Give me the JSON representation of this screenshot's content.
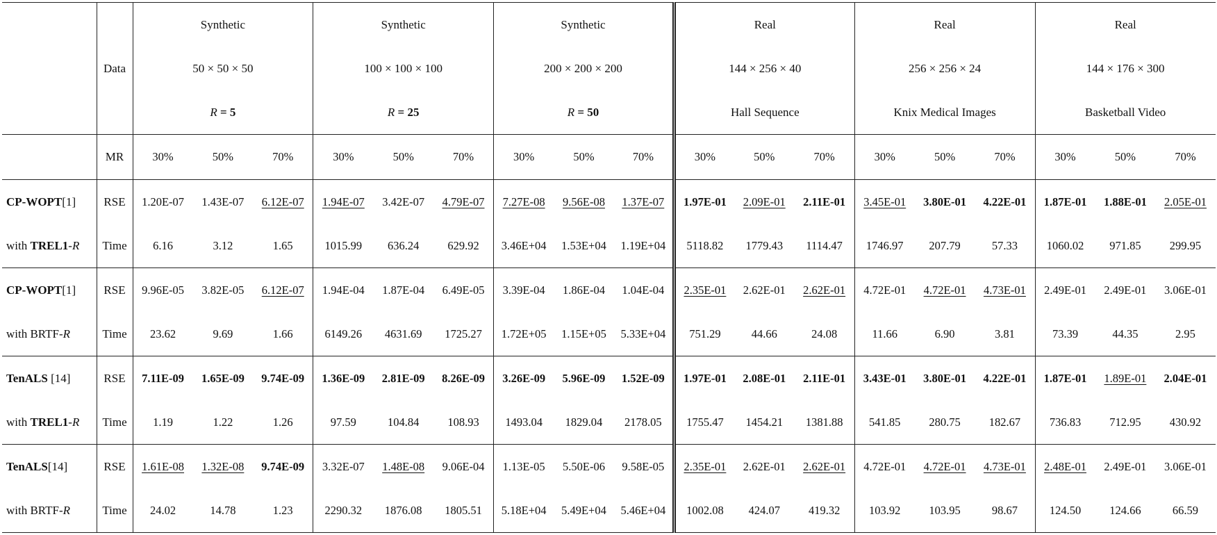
{
  "header": {
    "data_label": "Data",
    "mr_label": "MR",
    "groups": [
      {
        "type": "Synthetic",
        "dims": "50 × 50 × 50",
        "extra_prefix": "R",
        "extra_value": " = 5",
        "extra_bold": true
      },
      {
        "type": "Synthetic",
        "dims": "100 × 100 × 100",
        "extra_prefix": "R",
        "extra_value": " = 25",
        "extra_bold": true
      },
      {
        "type": "Synthetic",
        "dims": "200 × 200 × 200",
        "extra_prefix": "R",
        "extra_value": " = 50",
        "extra_bold": true
      },
      {
        "type": "Real",
        "dims": "144 × 256 × 40",
        "extra_prefix": "",
        "extra_value": "Hall Sequence",
        "extra_bold": false
      },
      {
        "type": "Real",
        "dims": "256 × 256 × 24",
        "extra_prefix": "",
        "extra_value": "Knix Medical Images",
        "extra_bold": false
      },
      {
        "type": "Real",
        "dims": "144 × 176 × 300",
        "extra_prefix": "",
        "extra_value": "Basketball Video",
        "extra_bold": false
      }
    ],
    "mr_values": [
      "30%",
      "50%",
      "70%"
    ]
  },
  "rows": [
    {
      "method_line1": {
        "bold": "CP-WOPT",
        "rest": "[1]"
      },
      "method_line2": {
        "pre": "with ",
        "bold": "TREL1",
        "mid": "-",
        "italic": "R"
      },
      "metric": "RSE",
      "cells": [
        {
          "v": "1.20E-07",
          "s": ""
        },
        {
          "v": "1.43E-07",
          "s": ""
        },
        {
          "v": "6.12E-07",
          "s": "u"
        },
        {
          "v": "1.94E-07",
          "s": "u"
        },
        {
          "v": "3.42E-07",
          "s": ""
        },
        {
          "v": "4.79E-07",
          "s": "u"
        },
        {
          "v": "7.27E-08",
          "s": "u"
        },
        {
          "v": "9.56E-08",
          "s": "u"
        },
        {
          "v": "1.37E-07",
          "s": "u"
        },
        {
          "v": "1.97E-01",
          "s": "b"
        },
        {
          "v": "2.09E-01",
          "s": "u"
        },
        {
          "v": "2.11E-01",
          "s": "b"
        },
        {
          "v": "3.45E-01",
          "s": "u"
        },
        {
          "v": "3.80E-01",
          "s": "b"
        },
        {
          "v": "4.22E-01",
          "s": "b"
        },
        {
          "v": "1.87E-01",
          "s": "b"
        },
        {
          "v": "1.88E-01",
          "s": "b"
        },
        {
          "v": "2.05E-01",
          "s": "u"
        }
      ]
    },
    {
      "metric": "Time",
      "cells": [
        {
          "v": "6.16",
          "s": ""
        },
        {
          "v": "3.12",
          "s": ""
        },
        {
          "v": "1.65",
          "s": ""
        },
        {
          "v": "1015.99",
          "s": ""
        },
        {
          "v": "636.24",
          "s": ""
        },
        {
          "v": "629.92",
          "s": ""
        },
        {
          "v": "3.46E+04",
          "s": ""
        },
        {
          "v": "1.53E+04",
          "s": ""
        },
        {
          "v": "1.19E+04",
          "s": ""
        },
        {
          "v": "5118.82",
          "s": ""
        },
        {
          "v": "1779.43",
          "s": ""
        },
        {
          "v": "1114.47",
          "s": ""
        },
        {
          "v": "1746.97",
          "s": ""
        },
        {
          "v": "207.79",
          "s": ""
        },
        {
          "v": "57.33",
          "s": ""
        },
        {
          "v": "1060.02",
          "s": ""
        },
        {
          "v": "971.85",
          "s": ""
        },
        {
          "v": "299.95",
          "s": ""
        }
      ]
    },
    {
      "method_line1": {
        "bold": "CP-WOPT",
        "rest": "[1]"
      },
      "method_line2": {
        "pre": "with BRTF-",
        "bold": "",
        "mid": "",
        "italic": "R"
      },
      "metric": "RSE",
      "cells": [
        {
          "v": "9.96E-05",
          "s": ""
        },
        {
          "v": "3.82E-05",
          "s": ""
        },
        {
          "v": "6.12E-07",
          "s": "u"
        },
        {
          "v": "1.94E-04",
          "s": ""
        },
        {
          "v": "1.87E-04",
          "s": ""
        },
        {
          "v": "6.49E-05",
          "s": ""
        },
        {
          "v": "3.39E-04",
          "s": ""
        },
        {
          "v": "1.86E-04",
          "s": ""
        },
        {
          "v": "1.04E-04",
          "s": ""
        },
        {
          "v": "2.35E-01",
          "s": "u"
        },
        {
          "v": "2.62E-01",
          "s": ""
        },
        {
          "v": "2.62E-01",
          "s": "u"
        },
        {
          "v": "4.72E-01",
          "s": ""
        },
        {
          "v": "4.72E-01",
          "s": "u"
        },
        {
          "v": "4.73E-01",
          "s": "u"
        },
        {
          "v": "2.49E-01",
          "s": ""
        },
        {
          "v": "2.49E-01",
          "s": ""
        },
        {
          "v": "3.06E-01",
          "s": ""
        }
      ]
    },
    {
      "metric": "Time",
      "cells": [
        {
          "v": "23.62",
          "s": ""
        },
        {
          "v": "9.69",
          "s": ""
        },
        {
          "v": "1.66",
          "s": ""
        },
        {
          "v": "6149.26",
          "s": ""
        },
        {
          "v": "4631.69",
          "s": ""
        },
        {
          "v": "1725.27",
          "s": ""
        },
        {
          "v": "1.72E+05",
          "s": ""
        },
        {
          "v": "1.15E+05",
          "s": ""
        },
        {
          "v": "5.33E+04",
          "s": ""
        },
        {
          "v": "751.29",
          "s": ""
        },
        {
          "v": "44.66",
          "s": ""
        },
        {
          "v": "24.08",
          "s": ""
        },
        {
          "v": "11.66",
          "s": ""
        },
        {
          "v": "6.90",
          "s": ""
        },
        {
          "v": "3.81",
          "s": ""
        },
        {
          "v": "73.39",
          "s": ""
        },
        {
          "v": "44.35",
          "s": ""
        },
        {
          "v": "2.95",
          "s": ""
        }
      ]
    },
    {
      "method_line1": {
        "bold": "TenALS",
        "rest": " [14]"
      },
      "method_line2": {
        "pre": "with ",
        "bold": "TREL1",
        "mid": "-",
        "italic": "R"
      },
      "metric": "RSE",
      "cells": [
        {
          "v": "7.11E-09",
          "s": "b"
        },
        {
          "v": "1.65E-09",
          "s": "b"
        },
        {
          "v": "9.74E-09",
          "s": "b"
        },
        {
          "v": "1.36E-09",
          "s": "b"
        },
        {
          "v": "2.81E-09",
          "s": "b"
        },
        {
          "v": "8.26E-09",
          "s": "b"
        },
        {
          "v": "3.26E-09",
          "s": "b"
        },
        {
          "v": "5.96E-09",
          "s": "b"
        },
        {
          "v": "1.52E-09",
          "s": "b"
        },
        {
          "v": "1.97E-01",
          "s": "b"
        },
        {
          "v": "2.08E-01",
          "s": "b"
        },
        {
          "v": "2.11E-01",
          "s": "b"
        },
        {
          "v": "3.43E-01",
          "s": "b"
        },
        {
          "v": "3.80E-01",
          "s": "b"
        },
        {
          "v": "4.22E-01",
          "s": "b"
        },
        {
          "v": "1.87E-01",
          "s": "b"
        },
        {
          "v": "1.89E-01",
          "s": "u"
        },
        {
          "v": "2.04E-01",
          "s": "b"
        }
      ]
    },
    {
      "metric": "Time",
      "cells": [
        {
          "v": "1.19",
          "s": ""
        },
        {
          "v": "1.22",
          "s": ""
        },
        {
          "v": "1.26",
          "s": ""
        },
        {
          "v": "97.59",
          "s": ""
        },
        {
          "v": "104.84",
          "s": ""
        },
        {
          "v": "108.93",
          "s": ""
        },
        {
          "v": "1493.04",
          "s": ""
        },
        {
          "v": "1829.04",
          "s": ""
        },
        {
          "v": "2178.05",
          "s": ""
        },
        {
          "v": "1755.47",
          "s": ""
        },
        {
          "v": "1454.21",
          "s": ""
        },
        {
          "v": "1381.88",
          "s": ""
        },
        {
          "v": "541.85",
          "s": ""
        },
        {
          "v": "280.75",
          "s": ""
        },
        {
          "v": "182.67",
          "s": ""
        },
        {
          "v": "736.83",
          "s": ""
        },
        {
          "v": "712.95",
          "s": ""
        },
        {
          "v": "430.92",
          "s": ""
        }
      ]
    },
    {
      "method_line1": {
        "bold": "TenALS",
        "rest": "[14]"
      },
      "method_line2": {
        "pre": "with BRTF-",
        "bold": "",
        "mid": "",
        "italic": "R"
      },
      "metric": "RSE",
      "cells": [
        {
          "v": "1.61E-08",
          "s": "u"
        },
        {
          "v": "1.32E-08",
          "s": "u"
        },
        {
          "v": "9.74E-09",
          "s": "b"
        },
        {
          "v": "3.32E-07",
          "s": ""
        },
        {
          "v": "1.48E-08",
          "s": "u"
        },
        {
          "v": "9.06E-04",
          "s": ""
        },
        {
          "v": "1.13E-05",
          "s": ""
        },
        {
          "v": "5.50E-06",
          "s": ""
        },
        {
          "v": "9.58E-05",
          "s": ""
        },
        {
          "v": "2.35E-01",
          "s": "u"
        },
        {
          "v": "2.62E-01",
          "s": ""
        },
        {
          "v": "2.62E-01",
          "s": "u"
        },
        {
          "v": "4.72E-01",
          "s": ""
        },
        {
          "v": "4.72E-01",
          "s": "u"
        },
        {
          "v": "4.73E-01",
          "s": "u"
        },
        {
          "v": "2.48E-01",
          "s": "u"
        },
        {
          "v": "2.49E-01",
          "s": ""
        },
        {
          "v": "3.06E-01",
          "s": ""
        }
      ]
    },
    {
      "metric": "Time",
      "cells": [
        {
          "v": "24.02",
          "s": ""
        },
        {
          "v": "14.78",
          "s": ""
        },
        {
          "v": "1.23",
          "s": ""
        },
        {
          "v": "2290.32",
          "s": ""
        },
        {
          "v": "1876.08",
          "s": ""
        },
        {
          "v": "1805.51",
          "s": ""
        },
        {
          "v": "5.18E+04",
          "s": ""
        },
        {
          "v": "5.49E+04",
          "s": ""
        },
        {
          "v": "5.46E+04",
          "s": ""
        },
        {
          "v": "1002.08",
          "s": ""
        },
        {
          "v": "424.07",
          "s": ""
        },
        {
          "v": "419.32",
          "s": ""
        },
        {
          "v": "103.92",
          "s": ""
        },
        {
          "v": "103.95",
          "s": ""
        },
        {
          "v": "98.67",
          "s": ""
        },
        {
          "v": "124.50",
          "s": ""
        },
        {
          "v": "124.66",
          "s": ""
        },
        {
          "v": "66.59",
          "s": ""
        }
      ]
    }
  ]
}
